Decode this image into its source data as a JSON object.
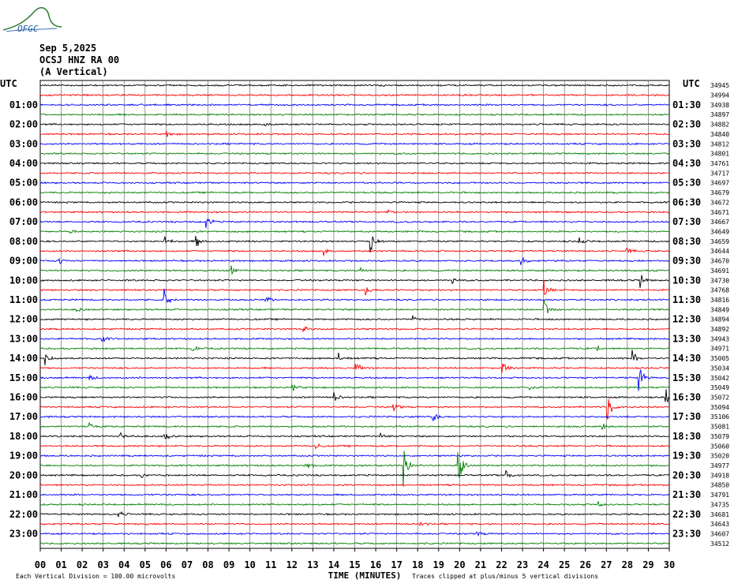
{
  "logo_text": "OFGC",
  "header": {
    "date": "Sep 5,2025",
    "station": "OCSJ HNZ RA 00",
    "component": "(A Vertical)"
  },
  "chart_data": {
    "type": "line",
    "title": "Sep 5,2025 OCSJ HNZ RA 00 (A Vertical)",
    "left_axis_label": "UTC",
    "right_axis_label": "UTC",
    "xlabel": "TIME (MINUTES)",
    "xlim": [
      0,
      30
    ],
    "x_ticks": [
      "00",
      "01",
      "02",
      "03",
      "04",
      "05",
      "06",
      "07",
      "08",
      "09",
      "10",
      "11",
      "12",
      "13",
      "14",
      "15",
      "16",
      "17",
      "18",
      "19",
      "20",
      "21",
      "22",
      "23",
      "24",
      "25",
      "26",
      "27",
      "28",
      "29",
      "30"
    ],
    "left_time_labels": [
      "01:00",
      "02:00",
      "03:00",
      "04:00",
      "05:00",
      "06:00",
      "07:00",
      "08:00",
      "09:00",
      "10:00",
      "11:00",
      "12:00",
      "13:00",
      "14:00",
      "15:00",
      "16:00",
      "17:00",
      "18:00",
      "19:00",
      "20:00",
      "21:00",
      "22:00",
      "23:00"
    ],
    "right_time_labels": [
      "01:30",
      "02:30",
      "03:30",
      "04:30",
      "05:30",
      "06:30",
      "07:30",
      "08:30",
      "09:30",
      "10:30",
      "11:30",
      "12:30",
      "13:30",
      "14:30",
      "15:30",
      "16:30",
      "17:30",
      "18:30",
      "19:30",
      "20:30",
      "21:30",
      "22:30",
      "23:30"
    ],
    "trace_colors": [
      "#000000",
      "#ff0000",
      "#0000ff",
      "#008000"
    ],
    "trace_offsets": [
      "34945",
      "34994",
      "34938",
      "34897",
      "34882",
      "34840",
      "34812",
      "34801",
      "34761",
      "34717",
      "34697",
      "34679",
      "34672",
      "34671",
      "34667",
      "34649",
      "34659",
      "34644",
      "34670",
      "34691",
      "34730",
      "34768",
      "34816",
      "34849",
      "34894",
      "34892",
      "34943",
      "34971",
      "35005",
      "35034",
      "35042",
      "35049",
      "35072",
      "35094",
      "35106",
      "35081",
      "35079",
      "35060",
      "35020",
      "34977",
      "34918",
      "34850",
      "34791",
      "34735",
      "34681",
      "34643",
      "34607",
      "34512"
    ],
    "grid": true,
    "footer_left": "Each Vertical Division =  100.00 microvolts",
    "footer_right": "Traces clipped at plus/minus 5 vertical divisions",
    "events": [
      {
        "trace": 4,
        "minute": 10.7,
        "amp": 0.5
      },
      {
        "trace": 5,
        "minute": 6.0,
        "amp": 0.6
      },
      {
        "trace": 13,
        "minute": 16.5,
        "amp": 0.5
      },
      {
        "trace": 14,
        "minute": 7.9,
        "amp": 1.1
      },
      {
        "trace": 15,
        "minute": 1.4,
        "amp": 0.5
      },
      {
        "trace": 16,
        "minute": 15.7,
        "amp": 2.3
      },
      {
        "trace": 16,
        "minute": 7.4,
        "amp": 1.1
      },
      {
        "trace": 16,
        "minute": 5.9,
        "amp": 1.0
      },
      {
        "trace": 16,
        "minute": 25.6,
        "amp": 0.9
      },
      {
        "trace": 17,
        "minute": 27.9,
        "amp": 0.8
      },
      {
        "trace": 17,
        "minute": 13.5,
        "amp": 0.5
      },
      {
        "trace": 18,
        "minute": 22.9,
        "amp": 0.9
      },
      {
        "trace": 18,
        "minute": 0.9,
        "amp": 0.5
      },
      {
        "trace": 19,
        "minute": 15.1,
        "amp": 1.2
      },
      {
        "trace": 19,
        "minute": 9.1,
        "amp": 0.6
      },
      {
        "trace": 20,
        "minute": 28.6,
        "amp": 1.0
      },
      {
        "trace": 20,
        "minute": 19.6,
        "amp": 0.6
      },
      {
        "trace": 21,
        "minute": 15.5,
        "amp": 0.8
      },
      {
        "trace": 21,
        "minute": 24.0,
        "amp": 1.2
      },
      {
        "trace": 22,
        "minute": 5.9,
        "amp": 1.5
      },
      {
        "trace": 22,
        "minute": 10.7,
        "amp": 0.6
      },
      {
        "trace": 23,
        "minute": 24.0,
        "amp": 2.6
      },
      {
        "trace": 23,
        "minute": 1.7,
        "amp": 0.5
      },
      {
        "trace": 24,
        "minute": 17.7,
        "amp": 0.6
      },
      {
        "trace": 25,
        "minute": 12.5,
        "amp": 0.6
      },
      {
        "trace": 26,
        "minute": 2.9,
        "amp": 0.6
      },
      {
        "trace": 27,
        "minute": 7.2,
        "amp": 0.6
      },
      {
        "trace": 27,
        "minute": 26.5,
        "amp": 0.6
      },
      {
        "trace": 28,
        "minute": 14.2,
        "amp": 1.0
      },
      {
        "trace": 28,
        "minute": 28.2,
        "amp": 1.4
      },
      {
        "trace": 28,
        "minute": 0.2,
        "amp": 1.0
      },
      {
        "trace": 29,
        "minute": 15.0,
        "amp": 1.3
      },
      {
        "trace": 29,
        "minute": 22.0,
        "amp": 1.5
      },
      {
        "trace": 30,
        "minute": 28.5,
        "amp": 2.4
      },
      {
        "trace": 30,
        "minute": 2.3,
        "amp": 0.5
      },
      {
        "trace": 31,
        "minute": 12.0,
        "amp": 0.8
      },
      {
        "trace": 31,
        "minute": 23.3,
        "amp": 0.5
      },
      {
        "trace": 32,
        "minute": 29.8,
        "amp": 2.0
      },
      {
        "trace": 32,
        "minute": 14.0,
        "amp": 0.7
      },
      {
        "trace": 33,
        "minute": 27.0,
        "amp": 2.3
      },
      {
        "trace": 33,
        "minute": 16.8,
        "amp": 1.5
      },
      {
        "trace": 34,
        "minute": 18.7,
        "amp": 1.0
      },
      {
        "trace": 35,
        "minute": 2.3,
        "amp": 0.9
      },
      {
        "trace": 35,
        "minute": 26.8,
        "amp": 0.7
      },
      {
        "trace": 36,
        "minute": 5.9,
        "amp": 0.8
      },
      {
        "trace": 36,
        "minute": 3.7,
        "amp": 1.1
      },
      {
        "trace": 36,
        "minute": 16.2,
        "amp": 0.7
      },
      {
        "trace": 37,
        "minute": 13.1,
        "amp": 0.6
      },
      {
        "trace": 39,
        "minute": 17.3,
        "amp": 3.2
      },
      {
        "trace": 39,
        "minute": 19.9,
        "amp": 3.4
      },
      {
        "trace": 39,
        "minute": 12.6,
        "amp": 0.8
      },
      {
        "trace": 40,
        "minute": 22.2,
        "amp": 0.7
      },
      {
        "trace": 40,
        "minute": 4.8,
        "amp": 0.4
      },
      {
        "trace": 43,
        "minute": 26.5,
        "amp": 0.7
      },
      {
        "trace": 44,
        "minute": 3.7,
        "amp": 0.6
      },
      {
        "trace": 45,
        "minute": 18.1,
        "amp": 0.6
      },
      {
        "trace": 46,
        "minute": 20.8,
        "amp": 0.7
      }
    ]
  }
}
